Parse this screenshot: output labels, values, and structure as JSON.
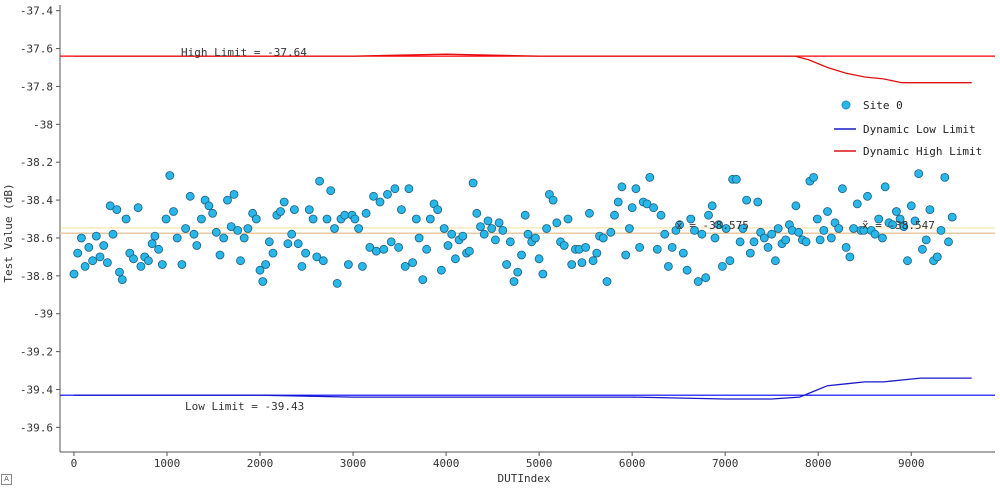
{
  "chart_data": {
    "type": "scatter",
    "xlabel": "DUTIndex",
    "ylabel": "Test Value (dB)",
    "xlim": [
      -150,
      9900
    ],
    "ylim": [
      -39.73,
      -37.37
    ],
    "x_ticks": [
      0,
      1000,
      2000,
      3000,
      4000,
      5000,
      6000,
      7000,
      8000,
      9000
    ],
    "y_ticks": [
      -37.4,
      -37.6,
      -37.8,
      -38,
      -38.2,
      -38.4,
      -38.6,
      -38.8,
      -39,
      -39.2,
      -39.4,
      -39.6
    ],
    "y_tick_labels": [
      "-37.4",
      "-37.6",
      "-37.8",
      "-38",
      "-38.2",
      "-38.4",
      "-38.6",
      "-38.8",
      "-39",
      "-39.2",
      "-39.4",
      "-39.6"
    ],
    "x_tick_labels": [
      "0",
      "1000",
      "2000",
      "3000",
      "4000",
      "5000",
      "6000",
      "7000",
      "8000",
      "9000"
    ],
    "grid": false,
    "legend_position": "right",
    "high_limit": {
      "label": "High Limit = -37.64",
      "value": -37.64,
      "color": "#ff0000"
    },
    "low_limit": {
      "label": "Low Limit = -39.43",
      "value": -39.43,
      "color": "#0000ff"
    },
    "mean_line": {
      "label": "x̄ = -38.575",
      "value": -38.575,
      "color": "#e8c9a0"
    },
    "median_line": {
      "label": "x̃ = -38.547",
      "value": -38.547,
      "color": "#f0c040"
    },
    "series": [
      {
        "name": "Site 0",
        "marker_color": "#29b6e8",
        "points": [
          [
            0,
            -38.79
          ],
          [
            40,
            -38.68
          ],
          [
            80,
            -38.6
          ],
          [
            120,
            -38.75
          ],
          [
            160,
            -38.65
          ],
          [
            200,
            -38.72
          ],
          [
            240,
            -38.59
          ],
          [
            280,
            -38.7
          ],
          [
            320,
            -38.64
          ],
          [
            360,
            -38.73
          ],
          [
            390,
            -38.43
          ],
          [
            420,
            -38.58
          ],
          [
            460,
            -38.45
          ],
          [
            490,
            -38.78
          ],
          [
            520,
            -38.82
          ],
          [
            560,
            -38.5
          ],
          [
            600,
            -38.68
          ],
          [
            640,
            -38.71
          ],
          [
            690,
            -38.44
          ],
          [
            720,
            -38.75
          ],
          [
            760,
            -38.7
          ],
          [
            800,
            -38.72
          ],
          [
            840,
            -38.63
          ],
          [
            870,
            -38.59
          ],
          [
            910,
            -38.66
          ],
          [
            950,
            -38.74
          ],
          [
            990,
            -38.5
          ],
          [
            1030,
            -38.27
          ],
          [
            1070,
            -38.46
          ],
          [
            1110,
            -38.6
          ],
          [
            1160,
            -38.74
          ],
          [
            1200,
            -38.55
          ],
          [
            1250,
            -38.38
          ],
          [
            1290,
            -38.58
          ],
          [
            1320,
            -38.64
          ],
          [
            1370,
            -38.5
          ],
          [
            1410,
            -38.4
          ],
          [
            1450,
            -38.43
          ],
          [
            1490,
            -38.47
          ],
          [
            1530,
            -38.57
          ],
          [
            1570,
            -38.69
          ],
          [
            1610,
            -38.6
          ],
          [
            1650,
            -38.4
          ],
          [
            1690,
            -38.54
          ],
          [
            1720,
            -38.37
          ],
          [
            1760,
            -38.56
          ],
          [
            1790,
            -38.72
          ],
          [
            1830,
            -38.6
          ],
          [
            1870,
            -38.55
          ],
          [
            1920,
            -38.47
          ],
          [
            1960,
            -38.5
          ],
          [
            2000,
            -38.77
          ],
          [
            2030,
            -38.83
          ],
          [
            2060,
            -38.74
          ],
          [
            2100,
            -38.62
          ],
          [
            2140,
            -38.68
          ],
          [
            2180,
            -38.48
          ],
          [
            2220,
            -38.46
          ],
          [
            2260,
            -38.41
          ],
          [
            2300,
            -38.63
          ],
          [
            2340,
            -38.58
          ],
          [
            2370,
            -38.45
          ],
          [
            2410,
            -38.63
          ],
          [
            2450,
            -38.75
          ],
          [
            2490,
            -38.68
          ],
          [
            2530,
            -38.45
          ],
          [
            2570,
            -38.5
          ],
          [
            2610,
            -38.7
          ],
          [
            2640,
            -38.3
          ],
          [
            2680,
            -38.72
          ],
          [
            2720,
            -38.5
          ],
          [
            2760,
            -38.35
          ],
          [
            2800,
            -38.55
          ],
          [
            2830,
            -38.84
          ],
          [
            2870,
            -38.5
          ],
          [
            2910,
            -38.48
          ],
          [
            2950,
            -38.74
          ],
          [
            2990,
            -38.48
          ],
          [
            3020,
            -38.5
          ],
          [
            3060,
            -38.55
          ],
          [
            3100,
            -38.75
          ],
          [
            3140,
            -38.47
          ],
          [
            3180,
            -38.65
          ],
          [
            3220,
            -38.38
          ],
          [
            3250,
            -38.67
          ],
          [
            3290,
            -38.41
          ],
          [
            3330,
            -38.66
          ],
          [
            3370,
            -38.37
          ],
          [
            3410,
            -38.62
          ],
          [
            3450,
            -38.34
          ],
          [
            3490,
            -38.65
          ],
          [
            3520,
            -38.45
          ],
          [
            3560,
            -38.75
          ],
          [
            3600,
            -38.34
          ],
          [
            3640,
            -38.73
          ],
          [
            3680,
            -38.5
          ],
          [
            3710,
            -38.6
          ],
          [
            3750,
            -38.82
          ],
          [
            3790,
            -38.66
          ],
          [
            3830,
            -38.5
          ],
          [
            3870,
            -38.42
          ],
          [
            3910,
            -38.45
          ],
          [
            3950,
            -38.77
          ],
          [
            3980,
            -38.55
          ],
          [
            4020,
            -38.64
          ],
          [
            4060,
            -38.58
          ],
          [
            4100,
            -38.71
          ],
          [
            4140,
            -38.61
          ],
          [
            4180,
            -38.59
          ],
          [
            4220,
            -38.68
          ],
          [
            4250,
            -38.67
          ],
          [
            4290,
            -38.31
          ],
          [
            4330,
            -38.47
          ],
          [
            4370,
            -38.54
          ],
          [
            4410,
            -38.58
          ],
          [
            4450,
            -38.51
          ],
          [
            4490,
            -38.55
          ],
          [
            4530,
            -38.61
          ],
          [
            4570,
            -38.52
          ],
          [
            4610,
            -38.56
          ],
          [
            4650,
            -38.74
          ],
          [
            4690,
            -38.62
          ],
          [
            4730,
            -38.83
          ],
          [
            4770,
            -38.78
          ],
          [
            4810,
            -38.69
          ],
          [
            4850,
            -38.48
          ],
          [
            4880,
            -38.58
          ],
          [
            4920,
            -38.62
          ],
          [
            4960,
            -38.6
          ],
          [
            5000,
            -38.71
          ],
          [
            5040,
            -38.79
          ],
          [
            5080,
            -38.55
          ],
          [
            5110,
            -38.37
          ],
          [
            5150,
            -38.4
          ],
          [
            5190,
            -38.52
          ],
          [
            5230,
            -38.62
          ],
          [
            5270,
            -38.64
          ],
          [
            5310,
            -38.5
          ],
          [
            5350,
            -38.74
          ],
          [
            5390,
            -38.66
          ],
          [
            5430,
            -38.66
          ],
          [
            5460,
            -38.73
          ],
          [
            5500,
            -38.65
          ],
          [
            5540,
            -38.47
          ],
          [
            5580,
            -38.72
          ],
          [
            5620,
            -38.68
          ],
          [
            5650,
            -38.59
          ],
          [
            5690,
            -38.6
          ],
          [
            5730,
            -38.83
          ],
          [
            5770,
            -38.57
          ],
          [
            5810,
            -38.48
          ],
          [
            5850,
            -38.41
          ],
          [
            5890,
            -38.33
          ],
          [
            5930,
            -38.69
          ],
          [
            5970,
            -38.55
          ],
          [
            6000,
            -38.44
          ],
          [
            6040,
            -38.34
          ],
          [
            6080,
            -38.65
          ],
          [
            6120,
            -38.41
          ],
          [
            6160,
            -38.42
          ],
          [
            6190,
            -38.28
          ],
          [
            6230,
            -38.44
          ],
          [
            6270,
            -38.66
          ],
          [
            6310,
            -38.48
          ],
          [
            6350,
            -38.58
          ],
          [
            6390,
            -38.75
          ],
          [
            6430,
            -38.65
          ],
          [
            6470,
            -38.56
          ],
          [
            6510,
            -38.53
          ],
          [
            6550,
            -38.68
          ],
          [
            6590,
            -38.77
          ],
          [
            6630,
            -38.5
          ],
          [
            6670,
            -38.56
          ],
          [
            6710,
            -38.83
          ],
          [
            6750,
            -38.58
          ],
          [
            6790,
            -38.81
          ],
          [
            6820,
            -38.48
          ],
          [
            6860,
            -38.43
          ],
          [
            6890,
            -38.6
          ],
          [
            6930,
            -38.53
          ],
          [
            6970,
            -38.75
          ],
          [
            7010,
            -38.55
          ],
          [
            7050,
            -38.72
          ],
          [
            7080,
            -38.29
          ],
          [
            7120,
            -38.29
          ],
          [
            7160,
            -38.62
          ],
          [
            7190,
            -38.55
          ],
          [
            7230,
            -38.4
          ],
          [
            7270,
            -38.68
          ],
          [
            7310,
            -38.62
          ],
          [
            7350,
            -38.41
          ],
          [
            7380,
            -38.57
          ],
          [
            7420,
            -38.6
          ],
          [
            7460,
            -38.65
          ],
          [
            7500,
            -38.58
          ],
          [
            7540,
            -38.72
          ],
          [
            7570,
            -38.55
          ],
          [
            7610,
            -38.63
          ],
          [
            7650,
            -38.61
          ],
          [
            7690,
            -38.53
          ],
          [
            7720,
            -38.56
          ],
          [
            7760,
            -38.43
          ],
          [
            7790,
            -38.57
          ],
          [
            7830,
            -38.61
          ],
          [
            7870,
            -38.62
          ],
          [
            7910,
            -38.3
          ],
          [
            7950,
            -38.28
          ],
          [
            7990,
            -38.5
          ],
          [
            8020,
            -38.61
          ],
          [
            8060,
            -38.56
          ],
          [
            8100,
            -38.46
          ],
          [
            8140,
            -38.6
          ],
          [
            8180,
            -38.52
          ],
          [
            8220,
            -38.55
          ],
          [
            8260,
            -38.34
          ],
          [
            8300,
            -38.65
          ],
          [
            8340,
            -38.7
          ],
          [
            8380,
            -38.55
          ],
          [
            8420,
            -38.42
          ],
          [
            8460,
            -38.56
          ],
          [
            8490,
            -38.56
          ],
          [
            8530,
            -38.38
          ],
          [
            8570,
            -38.56
          ],
          [
            8610,
            -38.58
          ],
          [
            8650,
            -38.5
          ],
          [
            8690,
            -38.6
          ],
          [
            8720,
            -38.33
          ],
          [
            8760,
            -38.52
          ],
          [
            8800,
            -38.53
          ],
          [
            8840,
            -38.46
          ],
          [
            8880,
            -38.5
          ],
          [
            8920,
            -38.54
          ],
          [
            8960,
            -38.72
          ],
          [
            9000,
            -38.43
          ],
          [
            9040,
            -38.51
          ],
          [
            9080,
            -38.26
          ],
          [
            9120,
            -38.66
          ],
          [
            9160,
            -38.61
          ],
          [
            9200,
            -38.45
          ],
          [
            9240,
            -38.72
          ],
          [
            9280,
            -38.7
          ],
          [
            9320,
            -38.56
          ],
          [
            9360,
            -38.28
          ],
          [
            9400,
            -38.62
          ],
          [
            9440,
            -38.49
          ]
        ]
      },
      {
        "name": "Dynamic Low Limit",
        "line_color": "#1a1acc",
        "points": [
          [
            0,
            -39.43
          ],
          [
            1000,
            -39.43
          ],
          [
            2000,
            -39.43
          ],
          [
            3000,
            -39.44
          ],
          [
            4000,
            -39.44
          ],
          [
            5000,
            -39.44
          ],
          [
            6000,
            -39.44
          ],
          [
            7000,
            -39.45
          ],
          [
            7500,
            -39.45
          ],
          [
            7800,
            -39.44
          ],
          [
            7950,
            -39.41
          ],
          [
            8100,
            -39.38
          ],
          [
            8300,
            -39.37
          ],
          [
            8500,
            -39.36
          ],
          [
            8700,
            -39.36
          ],
          [
            8900,
            -39.35
          ],
          [
            9100,
            -39.34
          ],
          [
            9300,
            -39.34
          ],
          [
            9500,
            -39.34
          ],
          [
            9650,
            -39.34
          ]
        ]
      },
      {
        "name": "Dynamic High Limit",
        "line_color": "#e01010",
        "points": [
          [
            0,
            -37.64
          ],
          [
            1000,
            -37.64
          ],
          [
            2000,
            -37.64
          ],
          [
            3000,
            -37.64
          ],
          [
            4000,
            -37.63
          ],
          [
            5000,
            -37.64
          ],
          [
            6000,
            -37.64
          ],
          [
            7000,
            -37.64
          ],
          [
            7500,
            -37.64
          ],
          [
            7750,
            -37.64
          ],
          [
            7900,
            -37.66
          ],
          [
            8100,
            -37.7
          ],
          [
            8300,
            -37.73
          ],
          [
            8500,
            -37.75
          ],
          [
            8700,
            -37.76
          ],
          [
            8900,
            -37.78
          ],
          [
            9100,
            -37.78
          ],
          [
            9300,
            -37.78
          ],
          [
            9500,
            -37.78
          ],
          [
            9650,
            -37.78
          ]
        ]
      }
    ]
  }
}
